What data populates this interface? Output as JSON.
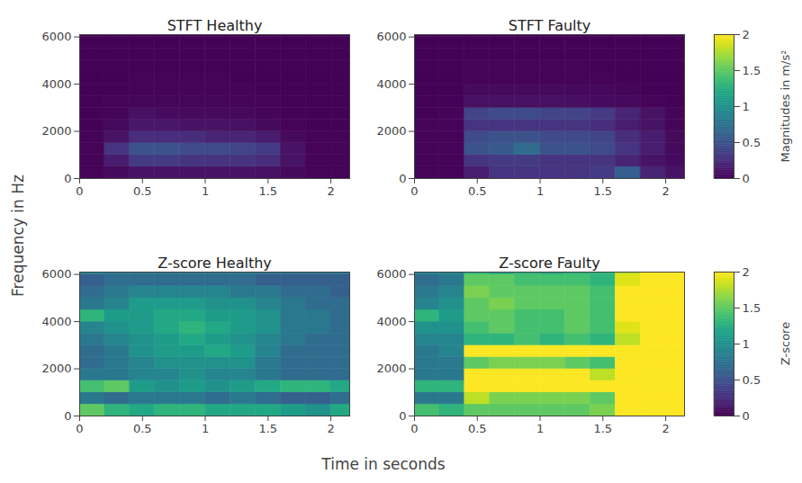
{
  "xlabel": "Time in seconds",
  "ylabel": "Frequency in Hz",
  "colorbars": [
    {
      "label": "Magnitudes in m/s²",
      "zlim": [
        0,
        2
      ],
      "zticks": [
        0,
        0.5,
        1,
        1.5,
        2
      ]
    },
    {
      "label": "Z-score",
      "zlim": [
        0,
        2
      ],
      "zticks": [
        0,
        0.5,
        1,
        1.5,
        2
      ]
    }
  ],
  "chart_data": [
    {
      "type": "heatmap",
      "title": "STFT Healthy",
      "x_edges": [
        0,
        0.2,
        0.4,
        0.6,
        0.8,
        1.0,
        1.2,
        1.4,
        1.6,
        1.8,
        2.0,
        2.15
      ],
      "y_edges": [
        0,
        500,
        1000,
        1500,
        2000,
        2500,
        3000,
        3500,
        4000,
        4500,
        5000,
        5500,
        6000,
        6100
      ],
      "xlim": [
        0,
        2.15
      ],
      "ylim": [
        0,
        6100
      ],
      "xticks": [
        0,
        0.5,
        1,
        1.5,
        2
      ],
      "yticks": [
        0,
        2000,
        4000,
        6000
      ],
      "cells": [
        [
          0.02,
          0.05,
          0.1,
          0.1,
          0.1,
          0.1,
          0.1,
          0.08,
          0.05,
          0.02,
          0.02
        ],
        [
          0.02,
          0.15,
          0.35,
          0.35,
          0.3,
          0.3,
          0.3,
          0.25,
          0.1,
          0.02,
          0.02
        ],
        [
          0.02,
          0.3,
          0.5,
          0.5,
          0.45,
          0.45,
          0.4,
          0.35,
          0.1,
          0.02,
          0.02
        ],
        [
          0.02,
          0.1,
          0.25,
          0.25,
          0.25,
          0.2,
          0.2,
          0.15,
          0.05,
          0.02,
          0.02
        ],
        [
          0.01,
          0.05,
          0.12,
          0.12,
          0.1,
          0.1,
          0.08,
          0.05,
          0.02,
          0.01,
          0.01
        ],
        [
          0.01,
          0.03,
          0.08,
          0.06,
          0.05,
          0.05,
          0.04,
          0.03,
          0.01,
          0.01,
          0.01
        ],
        [
          0.01,
          0.02,
          0.03,
          0.03,
          0.03,
          0.03,
          0.02,
          0.02,
          0.01,
          0.01,
          0.01
        ],
        [
          0.01,
          0.01,
          0.02,
          0.02,
          0.02,
          0.02,
          0.02,
          0.01,
          0.01,
          0.01,
          0.01
        ],
        [
          0.01,
          0.01,
          0.02,
          0.02,
          0.02,
          0.02,
          0.01,
          0.01,
          0.01,
          0.01,
          0.01
        ],
        [
          0.01,
          0.01,
          0.01,
          0.01,
          0.01,
          0.01,
          0.01,
          0.01,
          0.01,
          0.01,
          0.01
        ],
        [
          0.01,
          0.01,
          0.01,
          0.01,
          0.01,
          0.01,
          0.01,
          0.01,
          0.01,
          0.01,
          0.01
        ],
        [
          0.01,
          0.01,
          0.01,
          0.01,
          0.01,
          0.01,
          0.01,
          0.01,
          0.01,
          0.01,
          0.01
        ],
        [
          0.01,
          0.01,
          0.01,
          0.01,
          0.01,
          0.01,
          0.01,
          0.01,
          0.01,
          0.01,
          0.01
        ]
      ]
    },
    {
      "type": "heatmap",
      "title": "STFT Faulty",
      "x_edges": [
        0,
        0.2,
        0.4,
        0.6,
        0.8,
        1.0,
        1.2,
        1.4,
        1.6,
        1.8,
        2.0,
        2.15
      ],
      "y_edges": [
        0,
        500,
        1000,
        1500,
        2000,
        2500,
        3000,
        3500,
        4000,
        4500,
        5000,
        5500,
        6000,
        6100
      ],
      "xlim": [
        0,
        2.15
      ],
      "ylim": [
        0,
        6100
      ],
      "xticks": [
        0,
        0.5,
        1,
        1.5,
        2
      ],
      "yticks": [
        0,
        2000,
        4000,
        6000
      ],
      "cells": [
        [
          0.02,
          0.02,
          0.15,
          0.3,
          0.3,
          0.3,
          0.3,
          0.35,
          0.6,
          0.2,
          0.1
        ],
        [
          0.02,
          0.02,
          0.3,
          0.35,
          0.35,
          0.3,
          0.3,
          0.3,
          0.2,
          0.1,
          0.05
        ],
        [
          0.02,
          0.02,
          0.5,
          0.55,
          0.7,
          0.5,
          0.5,
          0.45,
          0.3,
          0.15,
          0.05
        ],
        [
          0.02,
          0.02,
          0.45,
          0.5,
          0.5,
          0.45,
          0.45,
          0.4,
          0.25,
          0.15,
          0.05
        ],
        [
          0.02,
          0.02,
          0.3,
          0.3,
          0.3,
          0.3,
          0.3,
          0.25,
          0.15,
          0.1,
          0.03
        ],
        [
          0.01,
          0.02,
          0.4,
          0.45,
          0.45,
          0.4,
          0.4,
          0.35,
          0.2,
          0.1,
          0.03
        ],
        [
          0.01,
          0.01,
          0.08,
          0.08,
          0.08,
          0.08,
          0.07,
          0.06,
          0.04,
          0.02,
          0.01
        ],
        [
          0.01,
          0.01,
          0.05,
          0.05,
          0.05,
          0.05,
          0.04,
          0.04,
          0.03,
          0.01,
          0.01
        ],
        [
          0.01,
          0.01,
          0.02,
          0.02,
          0.02,
          0.02,
          0.02,
          0.02,
          0.01,
          0.01,
          0.01
        ],
        [
          0.01,
          0.01,
          0.02,
          0.02,
          0.02,
          0.02,
          0.02,
          0.01,
          0.01,
          0.01,
          0.01
        ],
        [
          0.01,
          0.01,
          0.01,
          0.01,
          0.01,
          0.01,
          0.01,
          0.01,
          0.01,
          0.01,
          0.01
        ],
        [
          0.01,
          0.01,
          0.01,
          0.01,
          0.01,
          0.01,
          0.01,
          0.01,
          0.01,
          0.01,
          0.01
        ],
        [
          0.01,
          0.01,
          0.01,
          0.01,
          0.01,
          0.01,
          0.01,
          0.01,
          0.01,
          0.01,
          0.01
        ]
      ]
    },
    {
      "type": "heatmap",
      "title": "Z-score Healthy",
      "x_edges": [
        0,
        0.2,
        0.4,
        0.6,
        0.8,
        1.0,
        1.2,
        1.4,
        1.6,
        1.8,
        2.0,
        2.15
      ],
      "y_edges": [
        0,
        500,
        1000,
        1500,
        2000,
        2500,
        3000,
        3500,
        4000,
        4500,
        5000,
        5500,
        6000,
        6100
      ],
      "xlim": [
        0,
        2.15
      ],
      "ylim": [
        0,
        6100
      ],
      "xticks": [
        0,
        0.5,
        1,
        1.5,
        2
      ],
      "yticks": [
        0,
        2000,
        4000,
        6000
      ],
      "cells": [
        [
          1.5,
          1.3,
          1.2,
          1.3,
          1.3,
          1.2,
          1.2,
          1.2,
          1.1,
          1.0,
          1.2
        ],
        [
          0.8,
          0.7,
          0.8,
          0.8,
          0.8,
          0.7,
          0.8,
          0.7,
          0.6,
          0.6,
          0.7
        ],
        [
          1.4,
          1.5,
          1.1,
          1.0,
          1.1,
          1.0,
          1.1,
          1.2,
          1.3,
          1.3,
          1.2
        ],
        [
          0.8,
          0.8,
          0.9,
          0.9,
          1.0,
          0.9,
          0.9,
          0.8,
          0.7,
          0.7,
          0.7
        ],
        [
          0.7,
          0.8,
          0.9,
          1.0,
          1.0,
          1.0,
          1.0,
          0.8,
          0.7,
          0.7,
          0.7
        ],
        [
          0.7,
          0.8,
          1.0,
          1.1,
          1.1,
          1.2,
          1.1,
          0.9,
          0.7,
          0.7,
          0.7
        ],
        [
          0.8,
          0.9,
          1.0,
          1.1,
          1.2,
          1.1,
          1.0,
          0.9,
          0.8,
          0.7,
          0.7
        ],
        [
          0.9,
          1.0,
          1.1,
          1.2,
          1.3,
          1.2,
          1.1,
          1.0,
          0.8,
          0.8,
          0.7
        ],
        [
          1.3,
          1.1,
          1.1,
          1.2,
          1.2,
          1.1,
          1.1,
          1.0,
          0.8,
          0.8,
          0.7
        ],
        [
          0.8,
          0.9,
          1.1,
          1.1,
          1.1,
          1.0,
          1.0,
          0.9,
          0.8,
          0.7,
          0.7
        ],
        [
          0.7,
          0.8,
          0.9,
          0.9,
          0.9,
          0.9,
          0.8,
          0.8,
          0.7,
          0.7,
          0.6
        ],
        [
          0.6,
          0.7,
          0.7,
          0.7,
          0.7,
          0.7,
          0.7,
          0.6,
          0.6,
          0.6,
          0.6
        ],
        [
          0.9,
          0.8,
          0.8,
          0.8,
          0.8,
          0.8,
          0.8,
          0.8,
          0.8,
          0.8,
          0.8
        ]
      ]
    },
    {
      "type": "heatmap",
      "title": "Z-score Faulty",
      "x_edges": [
        0,
        0.2,
        0.4,
        0.6,
        0.8,
        1.0,
        1.2,
        1.4,
        1.6,
        1.8,
        2.0,
        2.15
      ],
      "y_edges": [
        0,
        500,
        1000,
        1500,
        2000,
        2500,
        3000,
        3500,
        4000,
        4500,
        5000,
        5500,
        6000,
        6100
      ],
      "xlim": [
        0,
        2.15
      ],
      "ylim": [
        0,
        6100
      ],
      "xticks": [
        0,
        0.5,
        1,
        1.5,
        2
      ],
      "yticks": [
        0,
        2000,
        4000,
        6000
      ],
      "cells": [
        [
          1.4,
          1.3,
          1.5,
          1.5,
          1.5,
          1.5,
          1.5,
          1.6,
          2.5,
          2.5,
          2.5
        ],
        [
          0.8,
          0.8,
          1.8,
          1.6,
          1.6,
          1.6,
          1.6,
          1.5,
          2.5,
          2.5,
          2.5
        ],
        [
          1.3,
          1.3,
          2.5,
          2.5,
          2.5,
          2.5,
          2.5,
          2.3,
          2.5,
          2.5,
          2.5
        ],
        [
          0.8,
          0.8,
          2.0,
          2.0,
          2.0,
          2.0,
          2.0,
          1.8,
          2.2,
          2.5,
          2.5
        ],
        [
          0.8,
          0.8,
          1.5,
          1.6,
          1.6,
          1.6,
          1.5,
          1.4,
          2.0,
          2.5,
          2.5
        ],
        [
          0.8,
          0.9,
          2.3,
          2.3,
          2.3,
          2.3,
          2.3,
          2.0,
          2.0,
          2.5,
          2.5
        ],
        [
          0.9,
          0.9,
          1.3,
          1.3,
          1.4,
          1.3,
          1.4,
          1.3,
          1.8,
          2.5,
          2.5
        ],
        [
          1.0,
          1.0,
          1.4,
          1.5,
          1.4,
          1.4,
          1.5,
          1.4,
          1.9,
          2.5,
          2.5
        ],
        [
          1.3,
          1.1,
          1.5,
          1.5,
          1.4,
          1.4,
          1.5,
          1.4,
          2.0,
          2.5,
          2.5
        ],
        [
          0.9,
          1.0,
          1.5,
          1.6,
          1.5,
          1.5,
          1.5,
          1.4,
          2.0,
          2.5,
          2.5
        ],
        [
          0.8,
          0.9,
          1.6,
          1.5,
          1.5,
          1.5,
          1.5,
          1.4,
          2.0,
          2.5,
          2.5
        ],
        [
          0.7,
          0.8,
          1.5,
          1.5,
          1.4,
          1.4,
          1.4,
          1.3,
          1.9,
          2.5,
          2.5
        ],
        [
          0.9,
          0.9,
          1.3,
          1.2,
          1.3,
          1.2,
          1.3,
          1.3,
          1.8,
          2.5,
          2.5
        ]
      ]
    }
  ]
}
